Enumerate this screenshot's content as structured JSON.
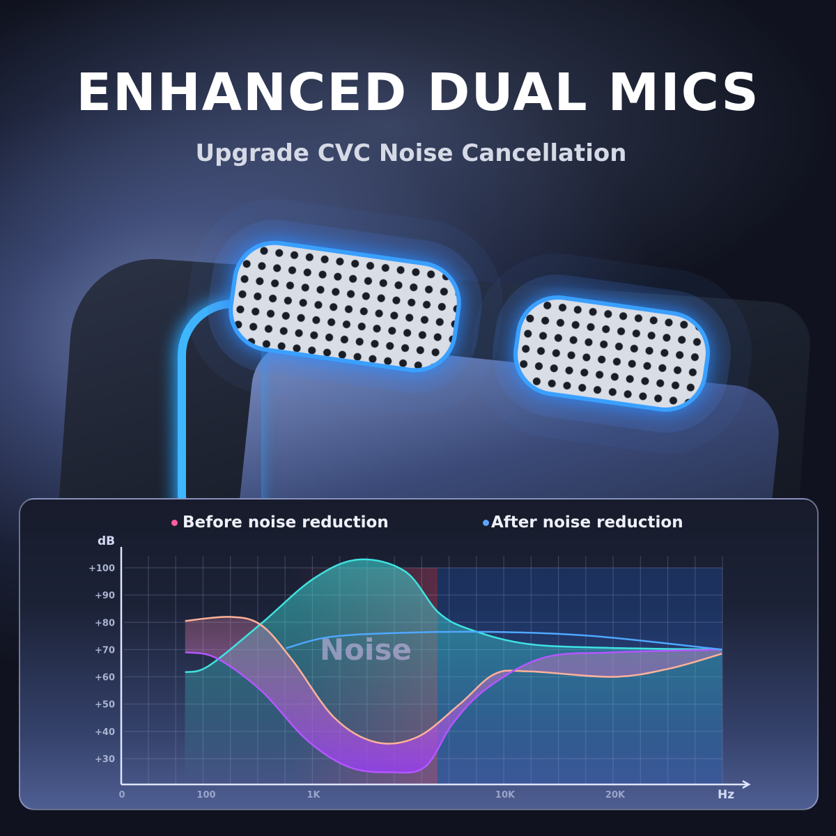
{
  "title": "ENHANCED DUAL MICS",
  "subtitle": "Upgrade CVC Noise Cancellation",
  "legend": [
    {
      "label": "Before noise reduction",
      "color": "#ff5f9e"
    },
    {
      "label": "After noise reduction",
      "color": "#5aa6ff"
    }
  ],
  "chart_data": {
    "type": "line",
    "ylabel": "dB",
    "xlabel": "Hz",
    "y_ticks": [
      "+100",
      "+90",
      "+80",
      "+70",
      "+60",
      "+50",
      "+40",
      "+30"
    ],
    "y_tick_values": [
      100,
      90,
      80,
      70,
      60,
      50,
      40,
      30
    ],
    "x_ticks": [
      "0",
      "100",
      "1K",
      "10K",
      "20K"
    ],
    "x_tick_values": [
      0,
      100,
      1000,
      10000,
      20000
    ],
    "ylim": [
      22,
      108
    ],
    "grid": true,
    "annotation": "Noise",
    "series": [
      {
        "color": "#3fe3e0",
        "x": [
          75,
          120,
          560,
          1000,
          3100,
          5300,
          6900,
          8500,
          12200,
          19800,
          29700
        ],
        "y": [
          61.7,
          64,
          79.5,
          96,
          103,
          98.7,
          83.4,
          77,
          72,
          70.6,
          70
        ]
      },
      {
        "color": "#ffb29a",
        "x": [
          75,
          300,
          560,
          825,
          1980,
          3950,
          5900,
          7870,
          9500,
          12200,
          19800,
          24900,
          29700
        ],
        "y": [
          80.5,
          82,
          79,
          66,
          45,
          36,
          38,
          50,
          61,
          62,
          60,
          63,
          68.5
        ]
      },
      {
        "color": "#b456ff",
        "x": [
          75,
          180,
          560,
          940,
          2640,
          4600,
          6240,
          7550,
          9180,
          13480,
          19800,
          29700
        ],
        "y": [
          69,
          67,
          55,
          37,
          27,
          25,
          27,
          43,
          56,
          67,
          69,
          70
        ]
      },
      {
        "color": "#4fa8ff",
        "x": [
          770,
          1650,
          4600,
          9180,
          17900,
          29700
        ],
        "y": [
          70.5,
          74.5,
          76,
          76.5,
          75,
          70
        ]
      }
    ]
  }
}
